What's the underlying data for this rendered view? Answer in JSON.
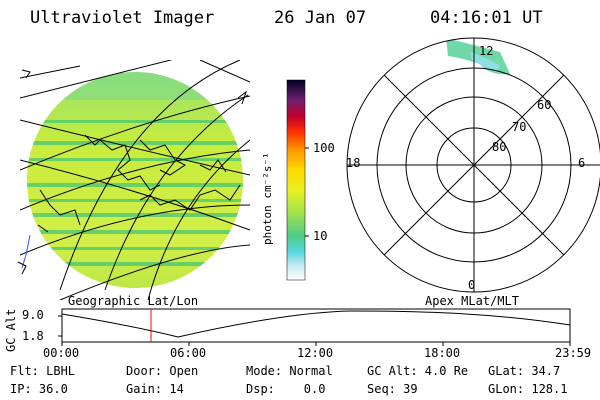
{
  "header": {
    "title": "Ultraviolet Imager",
    "date": "26 Jan 07",
    "time": "04:16:01 UT"
  },
  "colorbar": {
    "unit_label": "photon cm⁻²s⁻¹",
    "ticks": [
      "100",
      "10"
    ]
  },
  "polar": {
    "mlt_labels": {
      "top": "12",
      "left": "18",
      "right": "6",
      "bottom": "0"
    },
    "lat_labels": [
      "60",
      "70",
      "80"
    ]
  },
  "timeline": {
    "left_caption": "Geographic Lat/Lon",
    "right_caption": "Apex MLat/MLT",
    "axis_label": "GC Alt",
    "y_ticks": [
      "9.0",
      "1.8"
    ],
    "x_ticks": [
      "00:00",
      "06:00",
      "12:00",
      "18:00",
      "23:59"
    ]
  },
  "info": {
    "row1": [
      "Flt: LBHL",
      "Door: Open",
      "Mode: Normal",
      "GC Alt: 4.0 Re",
      "GLat: 34.7"
    ],
    "row2": [
      "IP: 36.0",
      "Gain: 14",
      "Dsp:    0.0",
      "Seq: 39",
      "GLon: 128.1"
    ]
  },
  "colors": {
    "disk_main": "#c8ec3c",
    "disk_band": "#5ccc6c",
    "accent_line": "#ff0000"
  }
}
